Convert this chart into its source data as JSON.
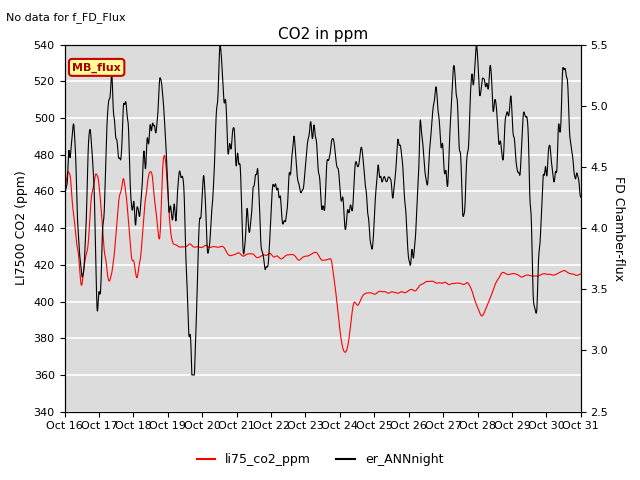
{
  "title": "CO2 in ppm",
  "top_label": "No data for f_FD_Flux",
  "ylabel_left": "LI7500 CO2 (ppm)",
  "ylabel_right": "FD Chamber-flux",
  "ylim_left": [
    340,
    540
  ],
  "ylim_right": [
    2.5,
    5.5
  ],
  "yticks_left": [
    340,
    360,
    380,
    400,
    420,
    440,
    460,
    480,
    500,
    520,
    540
  ],
  "yticks_right": [
    2.5,
    3.0,
    3.5,
    4.0,
    4.5,
    5.0,
    5.5
  ],
  "xtick_labels": [
    "Oct 16",
    "Oct 17",
    "Oct 18",
    "Oct 19",
    "Oct 20",
    "Oct 21",
    "Oct 22",
    "Oct 23",
    "Oct 24",
    "Oct 25",
    "Oct 26",
    "Oct 27",
    "Oct 28",
    "Oct 29",
    "Oct 30",
    "Oct 31"
  ],
  "legend_labels": [
    "li75_co2_ppm",
    "er_ANNnight"
  ],
  "legend_colors": [
    "red",
    "black"
  ],
  "line1_color": "red",
  "line2_color": "black",
  "box_label": "MB_flux",
  "box_color": "#ffff99",
  "box_border": "#cc0000",
  "plot_bg_color": "#dcdcdc",
  "grid_color": "white",
  "title_fontsize": 11,
  "label_fontsize": 9,
  "tick_fontsize": 8
}
